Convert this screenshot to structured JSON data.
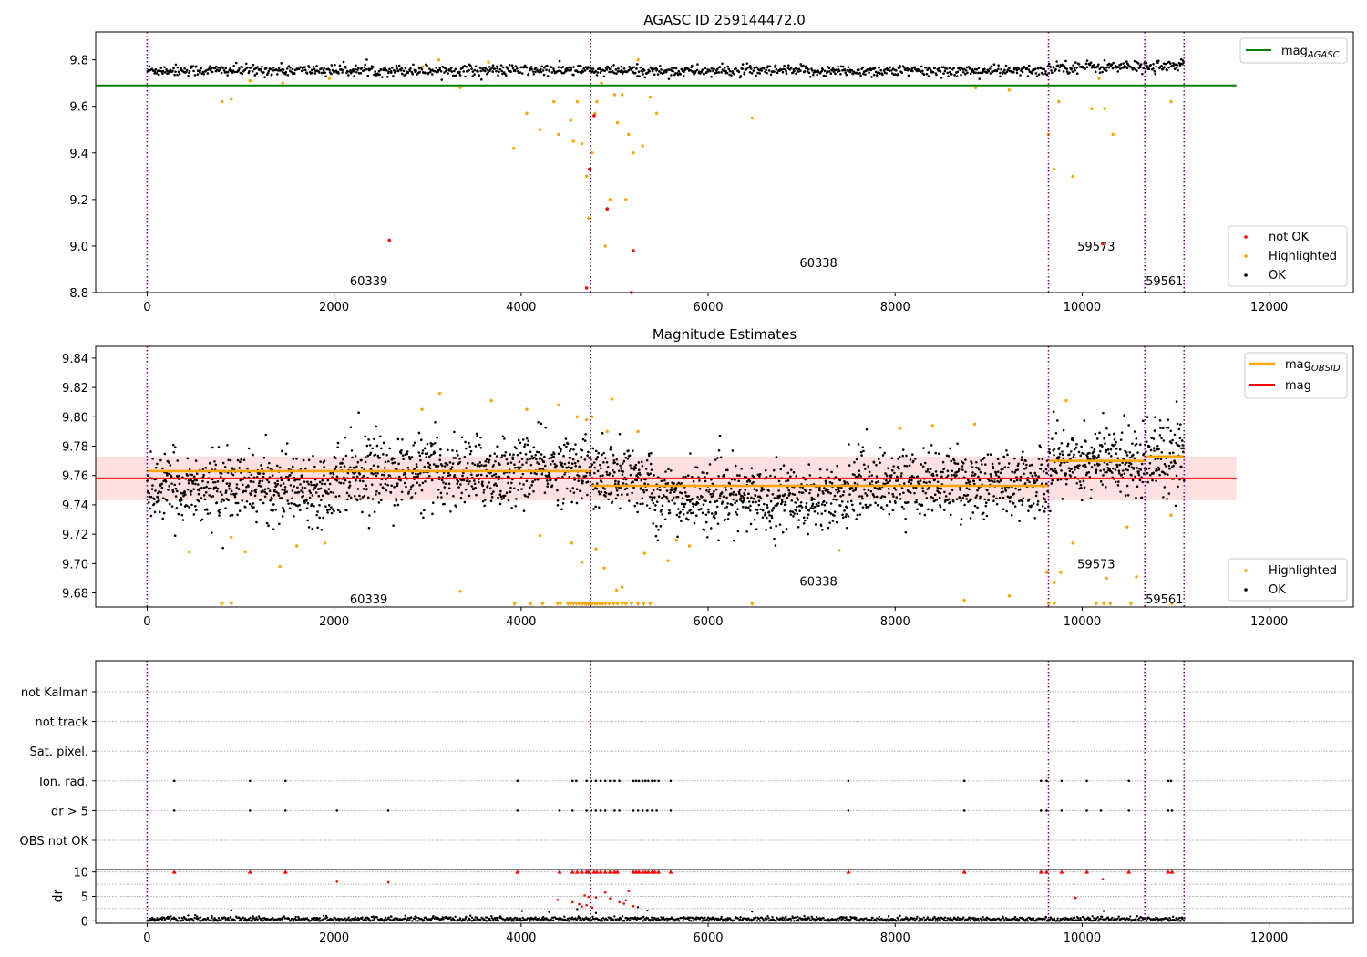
{
  "chart_data": [
    {
      "type": "scatter",
      "title": "AGASC ID 259144472.0",
      "xlabel": "",
      "ylabel": "",
      "xlim": [
        -550,
        12900
      ],
      "ylim": [
        8.8,
        9.92
      ],
      "x_ticks": [
        0,
        2000,
        4000,
        6000,
        8000,
        10000,
        12000
      ],
      "y_ticks": [
        8.8,
        9.0,
        9.2,
        9.4,
        9.6,
        9.8
      ],
      "y_tick_labels": [
        "8.8",
        "9.0",
        "9.2",
        "9.4",
        "9.6",
        "9.8"
      ],
      "grid": false,
      "legend_upper": {
        "position": "upper-right",
        "entries": [
          {
            "label_main": "mag",
            "label_sub": "AGASC",
            "color": "#008000"
          }
        ]
      },
      "legend_lower": {
        "position": "lower-right",
        "entries": [
          {
            "label": "not OK",
            "color": "#ff0000"
          },
          {
            "label": "Highlighted",
            "color": "#ffa500"
          },
          {
            "label": "OK",
            "color": "#000000"
          }
        ]
      },
      "agasc_mag": 9.69,
      "agasc_line_x": [
        -550,
        11650
      ],
      "obs_boundaries": [
        0,
        4740,
        9640,
        10670,
        11090
      ],
      "obs_labels": [
        {
          "text": "60339",
          "x": 2370,
          "y": 8.85
        },
        {
          "text": "60338",
          "x": 7180,
          "y": 8.93
        },
        {
          "text": "59573",
          "x": 10150,
          "y": 9.0
        },
        {
          "text": "59561",
          "x": 10880,
          "y": 8.85
        }
      ],
      "ok_segments": [
        {
          "x_range": [
            0,
            4740
          ],
          "center": 9.755,
          "spread": 0.012
        },
        {
          "x_range": [
            4740,
            9640
          ],
          "center": 9.752,
          "spread": 0.012
        },
        {
          "x_range": [
            9640,
            10670
          ],
          "center": 9.77,
          "spread": 0.013
        },
        {
          "x_range": [
            10670,
            11090
          ],
          "center": 9.773,
          "spread": 0.014
        }
      ],
      "highlighted_points": {
        "x": [
          800,
          900,
          1100,
          1450,
          1950,
          2950,
          3120,
          3350,
          3650,
          3920,
          4060,
          4200,
          4350,
          4400,
          4530,
          4560,
          4600,
          4650,
          4700,
          4720,
          4760,
          4790,
          4810,
          4860,
          4900,
          4950,
          5000,
          5030,
          5080,
          5120,
          5150,
          5200,
          5250,
          5300,
          5380,
          5450,
          6470,
          8860,
          9220,
          9640,
          9700,
          9750,
          9900,
          10100,
          10180,
          10240,
          10330,
          10950
        ],
        "y": [
          9.62,
          9.63,
          9.71,
          9.7,
          9.72,
          9.77,
          9.8,
          9.68,
          9.79,
          9.42,
          9.57,
          9.5,
          9.62,
          9.48,
          9.54,
          9.45,
          9.62,
          9.44,
          9.3,
          9.12,
          9.4,
          9.57,
          9.62,
          9.7,
          9.0,
          9.2,
          9.65,
          9.53,
          9.65,
          9.2,
          9.48,
          9.4,
          9.8,
          9.43,
          9.64,
          9.57,
          9.55,
          9.68,
          9.67,
          9.48,
          9.33,
          9.62,
          9.3,
          9.59,
          9.72,
          9.59,
          9.48,
          9.62
        ]
      },
      "not_ok_points": {
        "x": [
          2590,
          4700,
          4730,
          4780,
          4920,
          5200,
          5180,
          10220
        ],
        "y": [
          9.025,
          8.82,
          9.33,
          9.56,
          9.16,
          8.98,
          8.8,
          9.01
        ]
      }
    },
    {
      "type": "scatter",
      "title": "Magnitude Estimates",
      "xlabel": "",
      "ylabel": "",
      "xlim": [
        -550,
        12900
      ],
      "ylim": [
        9.6704,
        9.848
      ],
      "x_ticks": [
        0,
        2000,
        4000,
        6000,
        8000,
        10000,
        12000
      ],
      "y_ticks": [
        9.68,
        9.7,
        9.72,
        9.74,
        9.76,
        9.78,
        9.8,
        9.82,
        9.84
      ],
      "y_tick_labels": [
        "9.68",
        "9.70",
        "9.72",
        "9.74",
        "9.76",
        "9.78",
        "9.80",
        "9.82",
        "9.84"
      ],
      "grid": false,
      "legend_upper": {
        "position": "upper-right",
        "entries": [
          {
            "label_main": "mag",
            "label_sub": "OBSID",
            "color": "#ffa500"
          },
          {
            "label_main": "mag",
            "label_sub": "",
            "color": "#ff0000"
          }
        ]
      },
      "legend_lower": {
        "position": "lower-right",
        "entries": [
          {
            "label": "Highlighted",
            "color": "#ffa500"
          },
          {
            "label": "OK",
            "color": "#000000"
          }
        ]
      },
      "mag": 9.758,
      "mag_band": [
        9.743,
        9.773
      ],
      "mag_line_x": [
        -550,
        11650
      ],
      "obsid_mag_segments": [
        {
          "x_range": [
            0,
            4740
          ],
          "mag": 9.763
        },
        {
          "x_range": [
            4740,
            9640
          ],
          "mag": 9.753
        },
        {
          "x_range": [
            9640,
            10670
          ],
          "mag": 9.77
        },
        {
          "x_range": [
            10670,
            11090
          ],
          "mag": 9.773
        }
      ],
      "obs_boundaries": [
        0,
        4740,
        9640,
        10670,
        11090
      ],
      "obs_labels": [
        {
          "text": "60339",
          "x": 2370,
          "y": 9.676
        },
        {
          "text": "60338",
          "x": 7180,
          "y": 9.688
        },
        {
          "text": "59573",
          "x": 10150,
          "y": 9.7
        },
        {
          "text": "59561",
          "x": 10880,
          "y": 9.676
        }
      ],
      "ok_segments": [
        {
          "x_range": [
            0,
            2000
          ],
          "center": 9.752,
          "spread": 0.011
        },
        {
          "x_range": [
            2000,
            4000
          ],
          "center": 9.762,
          "spread": 0.012
        },
        {
          "x_range": [
            4000,
            4740
          ],
          "center": 9.765,
          "spread": 0.011
        },
        {
          "x_range": [
            4740,
            5400
          ],
          "center": 9.758,
          "spread": 0.012
        },
        {
          "x_range": [
            5400,
            7500
          ],
          "center": 9.745,
          "spread": 0.011
        },
        {
          "x_range": [
            7500,
            9640
          ],
          "center": 9.755,
          "spread": 0.011
        },
        {
          "x_range": [
            9640,
            10670
          ],
          "center": 9.77,
          "spread": 0.012
        },
        {
          "x_range": [
            10670,
            11090
          ],
          "center": 9.775,
          "spread": 0.013
        }
      ],
      "highlighted_points": {
        "x": [
          450,
          900,
          1050,
          1420,
          1600,
          1900,
          2940,
          3130,
          3350,
          3680,
          4060,
          4200,
          4400,
          4540,
          4600,
          4650,
          4700,
          4760,
          4800,
          4890,
          4920,
          4970,
          5020,
          5080,
          5250,
          5320,
          5570,
          5660,
          5800,
          7400,
          8050,
          8400,
          8740,
          8850,
          9220,
          9620,
          9700,
          9770,
          9830,
          9900,
          10260,
          10480,
          10580,
          10950
        ],
        "y": [
          9.708,
          9.718,
          9.708,
          9.698,
          9.712,
          9.714,
          9.805,
          9.816,
          9.681,
          9.811,
          9.805,
          9.719,
          9.808,
          9.714,
          9.8,
          9.701,
          9.798,
          9.8,
          9.71,
          9.697,
          9.79,
          9.812,
          9.682,
          9.684,
          9.79,
          9.707,
          9.702,
          9.716,
          9.712,
          9.709,
          9.792,
          9.794,
          9.675,
          9.795,
          9.678,
          9.694,
          9.687,
          9.694,
          9.811,
          9.714,
          9.69,
          9.725,
          9.691,
          9.733
        ]
      },
      "below_range_markers": {
        "x": [
          800,
          900,
          3930,
          4100,
          4230,
          4390,
          4420,
          4500,
          4530,
          4560,
          4590,
          4620,
          4650,
          4680,
          4700,
          4720,
          4740,
          4760,
          4790,
          4810,
          4840,
          4870,
          4900,
          4940,
          4990,
          5030,
          5080,
          5120,
          5180,
          5250,
          5310,
          5380,
          6470,
          9640,
          9700,
          10150,
          10230,
          10300,
          10520,
          10960
        ],
        "y_level": 9.6704
      }
    },
    {
      "type": "scatter",
      "title": "",
      "xlabel": "",
      "ylabel": "",
      "xlim": [
        -550,
        12900
      ],
      "flag_rows": [
        "not Kalman",
        "not track",
        "Sat. pixel.",
        "Ion. rad.",
        "dr > 5",
        "OBS not OK"
      ],
      "grid": true,
      "obs_boundaries": [
        0,
        4740,
        9640,
        10670,
        11090
      ],
      "flags": {
        "Ion. rad.": [
          290,
          1100,
          1480,
          3960,
          4550,
          4590,
          4700,
          4750,
          4800,
          4850,
          4900,
          4950,
          5000,
          5050,
          5200,
          5230,
          5260,
          5300,
          5330,
          5360,
          5400,
          5430,
          5470,
          5600,
          7500,
          8740,
          9560,
          9620,
          9780,
          10050,
          10500,
          10920,
          10950
        ],
        "dr > 5": [
          290,
          1100,
          1480,
          2030,
          2580,
          3960,
          4410,
          4550,
          4700,
          4750,
          4800,
          4850,
          4900,
          5000,
          5050,
          5200,
          5250,
          5300,
          5350,
          5400,
          5450,
          5600,
          7500,
          8740,
          9560,
          9620,
          9780,
          10050,
          10200,
          10500,
          10920,
          10960
        ]
      }
    },
    {
      "type": "scatter",
      "title": "",
      "xlabel": "",
      "ylabel": "dr",
      "xlim": [
        -550,
        12900
      ],
      "ylim": [
        -0.5,
        10.5
      ],
      "x_ticks": [
        0,
        2000,
        4000,
        6000,
        8000,
        10000,
        12000
      ],
      "y_ticks": [
        0,
        5,
        10
      ],
      "y_tick_labels": [
        "0",
        "5",
        "10"
      ],
      "grid": true,
      "obs_boundaries": [
        0,
        4740,
        9640,
        10670,
        11090
      ],
      "baseline": {
        "center": 0.35,
        "spread": 0.25
      },
      "cap_markers_x": [
        290,
        1100,
        1480,
        3960,
        4410,
        4550,
        4600,
        4650,
        4700,
        4720,
        4780,
        4810,
        4850,
        4900,
        4950,
        5000,
        5030,
        5200,
        5230,
        5260,
        5300,
        5330,
        5360,
        5400,
        5430,
        5470,
        5600,
        7500,
        8740,
        9560,
        9620,
        9780,
        10050,
        10500,
        10920,
        10960
      ],
      "cap_value": 10,
      "red_points": {
        "x": [
          2030,
          2580,
          4390,
          4550,
          4620,
          4650,
          4680,
          4700,
          4720,
          4760,
          4800,
          4900,
          4950,
          5050,
          5100,
          5120,
          5150,
          5200,
          9930,
          10220
        ],
        "y": [
          8.0,
          7.9,
          4.3,
          3.8,
          3.4,
          2.9,
          5.2,
          3.2,
          4.9,
          2.7,
          4.8,
          5.8,
          4.6,
          3.8,
          3.5,
          4.2,
          6.1,
          3.0,
          4.7,
          8.5
        ]
      },
      "black_outliers": {
        "x": [
          900,
          4010,
          4300,
          4600,
          4800,
          5250,
          5350,
          6470,
          10230
        ],
        "y": [
          2.2,
          2.0,
          1.8,
          2.4,
          1.6,
          2.8,
          2.1,
          1.9,
          2.0
        ]
      }
    }
  ]
}
